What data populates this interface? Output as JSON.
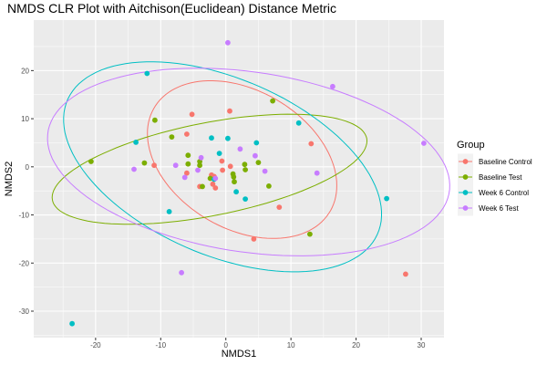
{
  "chart_data": {
    "type": "scatter",
    "title": "NMDS CLR Plot with Aitchison(Euclidean) Distance Metric",
    "xlabel": "NMDS1",
    "ylabel": "NMDS2",
    "xlim": [
      -29.5,
      33.5
    ],
    "ylim": [
      -35.5,
      30.5
    ],
    "x_ticks": [
      -20,
      -10,
      0,
      10,
      20,
      30
    ],
    "y_ticks": [
      -30,
      -20,
      -10,
      0,
      10,
      20
    ],
    "x_tick_labels": [
      "-20",
      "-10",
      "0",
      "10",
      "20",
      "30"
    ],
    "y_tick_labels": [
      "-30",
      "-20",
      "-10",
      "0",
      "10",
      "20"
    ],
    "grid": true,
    "background": "#ebebeb",
    "legend_title": "Group",
    "legend_position": "right",
    "series": [
      {
        "name": "Baseline Control",
        "color": "#F8766D",
        "points": [
          [
            -6,
            6.8
          ],
          [
            -5.2,
            10.9
          ],
          [
            0.6,
            11.6
          ],
          [
            -11,
            0.3
          ],
          [
            -6,
            -1.3
          ],
          [
            -1.8,
            -2
          ],
          [
            -2,
            -3.6
          ],
          [
            -1.6,
            -4.4
          ],
          [
            -4,
            -4.1
          ],
          [
            -2.2,
            -1.7
          ],
          [
            -0.5,
            -0.7
          ],
          [
            0.7,
            0.1
          ],
          [
            -0.6,
            1.2
          ],
          [
            13.1,
            4.8
          ],
          [
            8.2,
            -8.4
          ],
          [
            4.3,
            -15
          ],
          [
            27.6,
            -22.3
          ]
        ],
        "ellipse": {
          "center": [
            2.5,
            1.5
          ],
          "semi_axes": [
            18,
            12.5
          ],
          "angle_deg": -55
        }
      },
      {
        "name": "Baseline Test",
        "color": "#7CAE00",
        "points": [
          [
            -20.7,
            1.1
          ],
          [
            -12.5,
            0.8
          ],
          [
            -8.3,
            6.2
          ],
          [
            -10.9,
            9.7
          ],
          [
            -5.8,
            2.4
          ],
          [
            -5.8,
            0.6
          ],
          [
            -4,
            1.1
          ],
          [
            -4,
            0.3
          ],
          [
            -3.6,
            -4.1
          ],
          [
            -2.4,
            -2.4
          ],
          [
            1.1,
            -1.5
          ],
          [
            1.2,
            -2.1
          ],
          [
            1.3,
            -3.1
          ],
          [
            2.9,
            0.5
          ],
          [
            3,
            -0.6
          ],
          [
            5,
            0.9
          ],
          [
            6.6,
            -4
          ],
          [
            7.2,
            13.7
          ],
          [
            12.9,
            -14
          ]
        ],
        "ellipse": {
          "center": [
            -2.5,
            -0.5
          ],
          "semi_axes": [
            25,
            9.5
          ],
          "angle_deg": 16
        }
      },
      {
        "name": "Week 6 Control",
        "color": "#00BFC4",
        "points": [
          [
            -12.1,
            19.4
          ],
          [
            -13.8,
            5.1
          ],
          [
            -2.2,
            6
          ],
          [
            0.3,
            5.9
          ],
          [
            4.7,
            5
          ],
          [
            11.2,
            9.1
          ],
          [
            -1,
            2.8
          ],
          [
            -1.8,
            -2.6
          ],
          [
            1.6,
            -5.2
          ],
          [
            3,
            -6.7
          ],
          [
            -8.7,
            -9.3
          ],
          [
            24.7,
            -6.6
          ],
          [
            -23.6,
            -32.6
          ]
        ],
        "ellipse": {
          "center": [
            -0.5,
            0
          ],
          "semi_axes": [
            28,
            17
          ],
          "angle_deg": -38
        }
      },
      {
        "name": "Week 6 Test",
        "color": "#C77CFF",
        "points": [
          [
            0.3,
            25.8
          ],
          [
            16.4,
            16.7
          ],
          [
            30.4,
            4.9
          ],
          [
            -14.1,
            -0.5
          ],
          [
            -7.7,
            0.3
          ],
          [
            -3.8,
            1.9
          ],
          [
            -6.3,
            -2.2
          ],
          [
            -4.3,
            -0.7
          ],
          [
            -1.6,
            -2.4
          ],
          [
            2.2,
            3.7
          ],
          [
            4.5,
            2.3
          ],
          [
            6,
            -0.9
          ],
          [
            14,
            -1.3
          ],
          [
            -6.8,
            -22
          ]
        ],
        "ellipse": {
          "center": [
            3.5,
            1
          ],
          "semi_axes": [
            31.5,
            18.5
          ],
          "angle_deg": -14
        }
      }
    ]
  }
}
